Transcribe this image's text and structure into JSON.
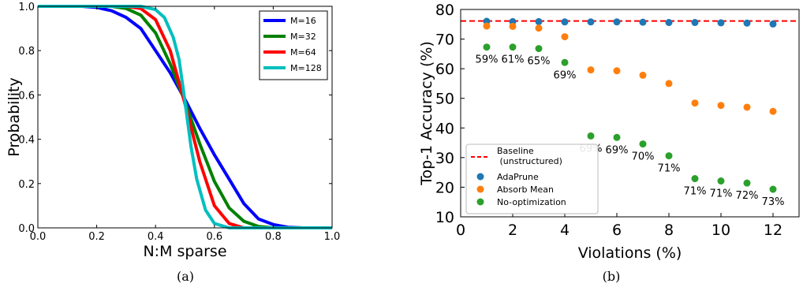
{
  "chart_data": [
    {
      "type": "line",
      "caption": "(a)",
      "xlabel": "N:M sparse",
      "ylabel": "Probability",
      "xlim": [
        0.0,
        1.0
      ],
      "ylim": [
        0.0,
        1.0
      ],
      "xticks": [
        "0.0",
        "0.2",
        "0.4",
        "0.6",
        "0.8",
        "1.0"
      ],
      "yticks": [
        "0.0",
        "0.2",
        "0.4",
        "0.6",
        "0.8",
        "1.0"
      ],
      "grid": false,
      "legend_position": "top-right",
      "series": [
        {
          "name": "M=16",
          "color": "#0000ff",
          "x": [
            0.0,
            0.15,
            0.2,
            0.25,
            0.3,
            0.35,
            0.4,
            0.45,
            0.5,
            0.55,
            0.6,
            0.65,
            0.7,
            0.75,
            0.8,
            0.85,
            0.9,
            1.0
          ],
          "y": [
            1.0,
            1.0,
            0.995,
            0.98,
            0.95,
            0.9,
            0.8,
            0.7,
            0.58,
            0.45,
            0.33,
            0.22,
            0.11,
            0.04,
            0.015,
            0.003,
            0.0,
            0.0
          ]
        },
        {
          "name": "M=32",
          "color": "#008000",
          "x": [
            0.0,
            0.25,
            0.3,
            0.35,
            0.4,
            0.45,
            0.5,
            0.55,
            0.6,
            0.65,
            0.7,
            0.75,
            0.8,
            1.0
          ],
          "y": [
            1.0,
            1.0,
            0.99,
            0.96,
            0.88,
            0.74,
            0.57,
            0.38,
            0.21,
            0.09,
            0.03,
            0.006,
            0.0,
            0.0
          ]
        },
        {
          "name": "M=64",
          "color": "#ff0000",
          "x": [
            0.0,
            0.3,
            0.35,
            0.4,
            0.45,
            0.5,
            0.55,
            0.6,
            0.65,
            0.7,
            1.0
          ],
          "y": [
            1.0,
            1.0,
            0.99,
            0.94,
            0.8,
            0.56,
            0.3,
            0.1,
            0.02,
            0.0,
            0.0
          ]
        },
        {
          "name": "M=128",
          "color": "#00bfbf",
          "x": [
            0.0,
            0.35,
            0.4,
            0.43,
            0.46,
            0.48,
            0.5,
            0.52,
            0.54,
            0.57,
            0.6,
            0.65,
            1.0
          ],
          "y": [
            1.0,
            1.0,
            0.985,
            0.95,
            0.86,
            0.76,
            0.57,
            0.37,
            0.22,
            0.08,
            0.02,
            0.0,
            0.0
          ]
        }
      ]
    },
    {
      "type": "scatter",
      "caption": "(b)",
      "xlabel": "Violations (%)",
      "ylabel": "Top-1 Accuracy (%)",
      "xlim": [
        0,
        13
      ],
      "ylim": [
        10,
        80
      ],
      "xticks": [
        "0",
        "2",
        "4",
        "6",
        "8",
        "10",
        "12"
      ],
      "yticks": [
        "10",
        "20",
        "30",
        "40",
        "50",
        "60",
        "70",
        "80"
      ],
      "grid": false,
      "legend_position": "lower-left",
      "baseline": {
        "name": "Baseline\n (unstructured)",
        "value": 76.1,
        "color": "#ff0000"
      },
      "series": [
        {
          "name": "AdaPrune",
          "color": "#1f77b4",
          "x": [
            1,
            2,
            3,
            4,
            5,
            6,
            7,
            8,
            9,
            10,
            11,
            12
          ],
          "y": [
            76.0,
            75.9,
            75.9,
            75.8,
            75.8,
            75.8,
            75.7,
            75.6,
            75.6,
            75.5,
            75.4,
            75.1
          ]
        },
        {
          "name": "Absorb Mean",
          "color": "#ff7f0e",
          "x": [
            1,
            2,
            3,
            4,
            5,
            6,
            7,
            8,
            9,
            10,
            11,
            12
          ],
          "y": [
            74.4,
            74.3,
            73.7,
            70.8,
            59.6,
            59.3,
            57.8,
            55.0,
            48.4,
            47.6,
            47.0,
            45.6
          ]
        },
        {
          "name": "No-optimization",
          "color": "#2ca02c",
          "x": [
            1,
            2,
            3,
            4,
            5,
            6,
            7,
            8,
            9,
            10,
            11,
            12
          ],
          "y": [
            67.3,
            67.3,
            66.8,
            62.1,
            37.3,
            36.8,
            34.6,
            30.6,
            22.9,
            22.1,
            21.4,
            19.3
          ],
          "labels": [
            "59%",
            "61%",
            "65%",
            "69%",
            "69%",
            "69%",
            "70%",
            "71%",
            "71%",
            "71%",
            "72%",
            "73%"
          ]
        }
      ]
    }
  ]
}
